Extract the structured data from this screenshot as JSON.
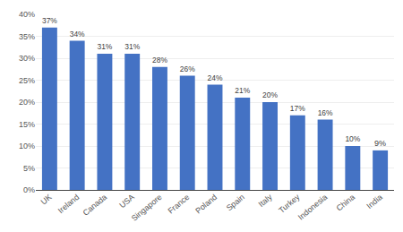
{
  "chart_data": {
    "type": "bar",
    "categories": [
      "UK",
      "Ireland",
      "Canada",
      "USA",
      "Singapore",
      "France",
      "Poland",
      "Spain",
      "Italy",
      "Turkey",
      "Indonesia",
      "China",
      "India"
    ],
    "values": [
      37,
      34,
      31,
      31,
      28,
      26,
      24,
      21,
      20,
      17,
      16,
      10,
      9
    ],
    "value_labels": [
      "37%",
      "34%",
      "31%",
      "31%",
      "28%",
      "26%",
      "24%",
      "21%",
      "20%",
      "17%",
      "16%",
      "10%",
      "9%"
    ],
    "data_labels": true,
    "color": "#4472C4",
    "ylim": [
      0,
      40
    ],
    "yticks": [
      {
        "value": 0,
        "label": "0%"
      },
      {
        "value": 5,
        "label": "5%"
      },
      {
        "value": 10,
        "label": "10%"
      },
      {
        "value": 15,
        "label": "15%"
      },
      {
        "value": 20,
        "label": "20%"
      },
      {
        "value": 25,
        "label": "25%"
      },
      {
        "value": 30,
        "label": "30%"
      },
      {
        "value": 35,
        "label": "35%"
      },
      {
        "value": 40,
        "label": "40%"
      }
    ],
    "grid": true
  }
}
